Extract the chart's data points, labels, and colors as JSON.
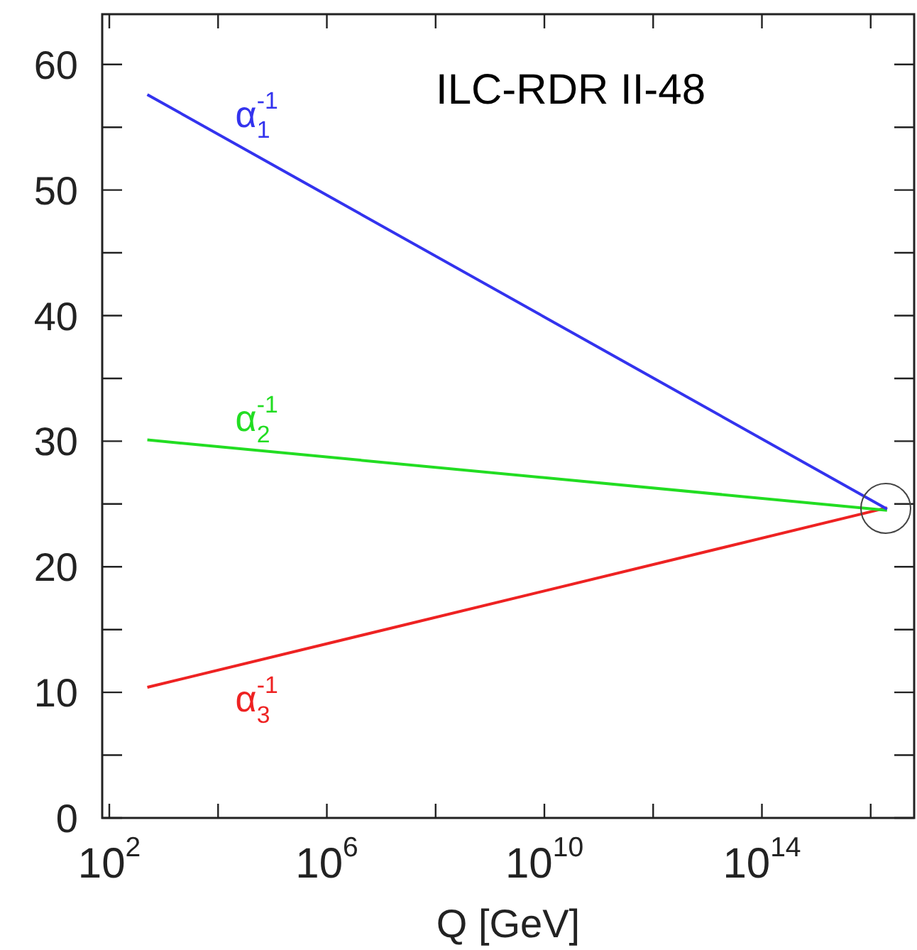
{
  "chart_data": {
    "type": "line",
    "xlabel": "Q [GeV]",
    "log": "x",
    "legend": false,
    "grid": false,
    "line_style": "solid",
    "xlim": [
      74,
      6.3e+16
    ],
    "ylim": [
      0,
      64
    ],
    "xticks": [
      {
        "value": 100,
        "label": "10$^{2}$"
      },
      {
        "value": 10000.0,
        "label": null
      },
      {
        "value": 1000000.0,
        "label": "10$^{6}$"
      },
      {
        "value": 100000000.0,
        "label": null
      },
      {
        "value": 10000000000.0,
        "label": "10$^{10}$"
      },
      {
        "value": 1000000000000.0,
        "label": null
      },
      {
        "value": 100000000000000.0,
        "label": "10$^{14}$"
      },
      {
        "value": 1e+16,
        "label": null
      }
    ],
    "yticks": [
      0,
      {
        "value": 5,
        "label": null
      },
      10,
      {
        "value": 15,
        "label": null
      },
      20,
      {
        "value": 25,
        "label": null
      },
      30,
      {
        "value": 35,
        "label": null
      },
      40,
      {
        "value": 45,
        "label": null
      },
      50,
      {
        "value": 55,
        "label": null
      },
      60
    ],
    "x": [
      500,
      2e+16
    ],
    "series": [
      {
        "name": "α$_{1}$$^{-1}$",
        "color": "#3333ee",
        "values": [
          57.6,
          24.6
        ]
      },
      {
        "name": "α$_{2}$$^{-1}$",
        "color": "#22dd22",
        "values": [
          30.1,
          24.5
        ]
      },
      {
        "name": "α$_{3}$$^{-1}$",
        "color": "#ee2222",
        "values": [
          10.4,
          24.7
        ]
      }
    ],
    "annotations": [
      "ILC-RDR II-48"
    ]
  }
}
